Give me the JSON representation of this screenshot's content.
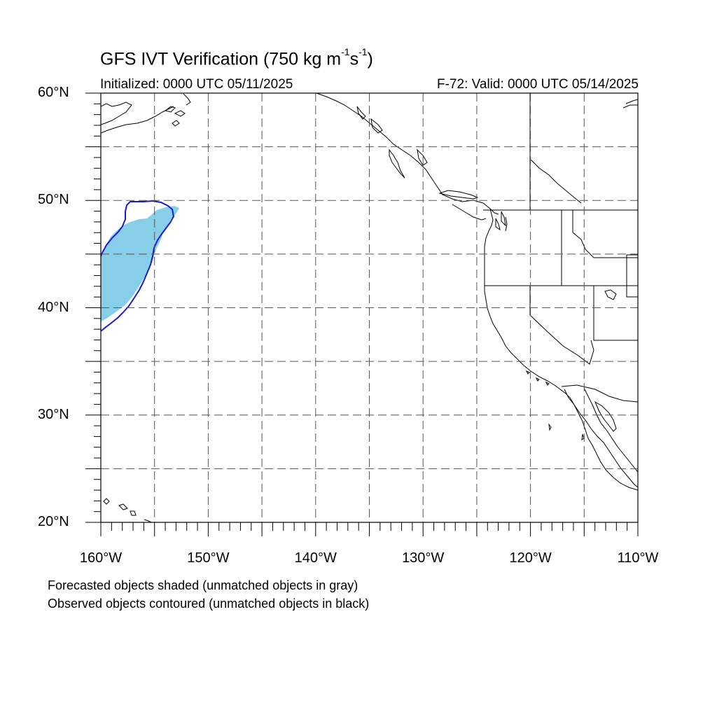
{
  "title": {
    "main": "GFS IVT Verification (750 kg m",
    "sup1": "-1",
    "mid": "s",
    "sup2": "-1",
    "end": ")"
  },
  "subtitle_left": "Initialized: 0000 UTC 05/11/2025",
  "subtitle_right": "F-72: Valid: 0000 UTC 05/14/2025",
  "map": {
    "projection": "cylindrical equidistant",
    "lon_range": [
      -160,
      -110
    ],
    "lat_range": [
      20,
      60
    ],
    "gridlines": "dashed every 5°",
    "lat_labels": [
      "60°N",
      "50°N",
      "40°N",
      "30°N",
      "20°N"
    ],
    "lon_labels": [
      "160°W",
      "150°W",
      "140°W",
      "130°W",
      "120°W",
      "110°W"
    ],
    "colors": {
      "forecast_fill": "#87cfe8",
      "observed_contour": "#1b1bd6",
      "coastline": "#000000",
      "grid": "#555555"
    }
  },
  "legend_notes": [
    "Forecasted objects shaded (unmatched objects in gray)",
    "Observed objects contoured (unmatched objects in black)"
  ]
}
